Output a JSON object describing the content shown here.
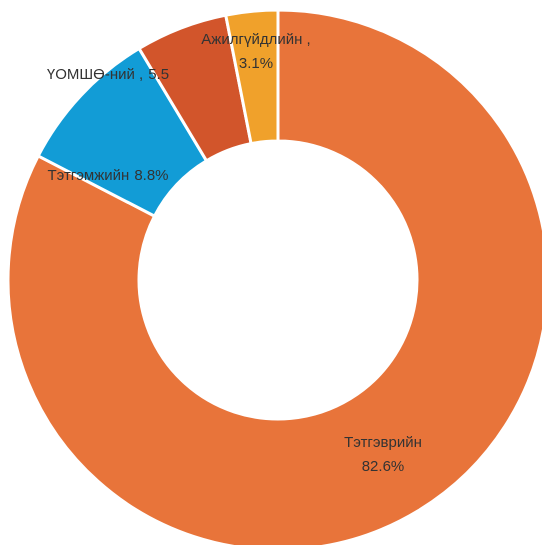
{
  "chart_data": {
    "type": "donut",
    "categories": [
      "Тэтгэврийн",
      "Тэтгэмжийн",
      "ҮОМШӨ-ний ,",
      "Ажилгүйдлийн ,"
    ],
    "values": [
      82.6,
      8.8,
      5.5,
      3.1
    ],
    "value_labels": [
      "82.6%",
      "8.8%",
      "5.5",
      "3.1%"
    ],
    "colors": [
      "#E8743A",
      "#129CD6",
      "#D2552B",
      "#F0A12B"
    ]
  }
}
